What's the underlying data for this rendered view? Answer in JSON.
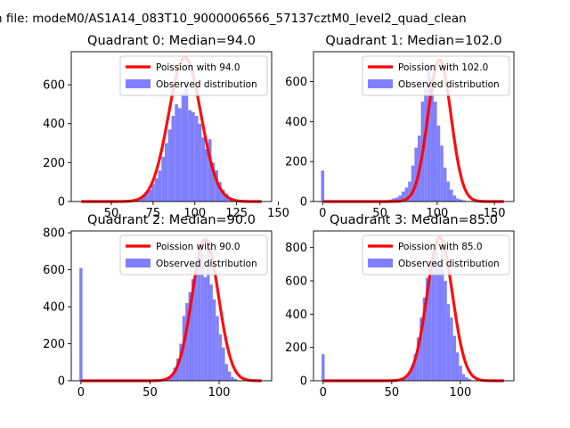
{
  "figure_title": "n file: modeM0/AS1A14_083T10_9000006566_57137cztM0_level2_quad_clean",
  "colors": {
    "poisson_line": "#ff0000",
    "histogram": "#8080ff",
    "axes": "#000000",
    "legend_border": "#cccccc",
    "background": "#ffffff"
  },
  "chart_data": [
    {
      "type": "bar",
      "title": "Quadrant 0: Median=94.0",
      "xlim": [
        26,
        146
      ],
      "ylim": [
        0,
        770
      ],
      "xticks": [
        50,
        75,
        100,
        125,
        150
      ],
      "yticks": [
        0,
        200,
        400,
        600
      ],
      "legend_position": "top-right",
      "line": {
        "name": "Poission with 94.0",
        "mu": 94.0,
        "peak": 740
      },
      "hist": {
        "name": "Observed distribution",
        "start": 62,
        "width": 2,
        "values": [
          5,
          10,
          20,
          30,
          50,
          60,
          90,
          120,
          160,
          230,
          300,
          370,
          440,
          500,
          480,
          560,
          620,
          470,
          460,
          440,
          400,
          330,
          270,
          320,
          200,
          160,
          100,
          60,
          40,
          20
        ]
      }
    },
    {
      "type": "bar",
      "title": "Quadrant 1: Median=102.0",
      "xlim": [
        -8,
        167
      ],
      "ylim": [
        0,
        750
      ],
      "xticks": [
        0,
        50,
        100,
        150
      ],
      "yticks": [
        0,
        200,
        400,
        600
      ],
      "legend_position": "top-right",
      "line": {
        "name": "Poission with 102.0",
        "mu": 102.0,
        "peak": 710
      },
      "hist": {
        "name": "Observed distribution",
        "start": 0,
        "width": 2.8,
        "spikes": [
          {
            "x": 0,
            "value": 155
          }
        ],
        "bins_start": 55,
        "values": [
          5,
          10,
          15,
          20,
          30,
          50,
          70,
          100,
          180,
          270,
          330,
          500,
          570,
          690,
          620,
          500,
          380,
          280,
          170,
          100,
          60,
          30,
          15,
          10,
          5
        ]
      }
    },
    {
      "type": "bar",
      "title": "Quadrant 2: Median=90.0",
      "xlim": [
        -7,
        138
      ],
      "ylim": [
        0,
        810
      ],
      "xticks": [
        0,
        50,
        100
      ],
      "yticks": [
        0,
        200,
        400,
        600,
        800
      ],
      "legend_position": "top-right",
      "line": {
        "name": "Poission with 90.0",
        "mu": 90.0,
        "peak": 765
      },
      "hist": {
        "name": "Observed distribution",
        "start": 0,
        "width": 2.2,
        "spikes": [
          {
            "x": 0,
            "value": 610
          }
        ],
        "bins_start": 58,
        "values": [
          5,
          10,
          20,
          30,
          70,
          120,
          200,
          350,
          420,
          480,
          550,
          650,
          740,
          690,
          560,
          720,
          520,
          440,
          350,
          250,
          180,
          90,
          50,
          20,
          10
        ]
      }
    },
    {
      "type": "bar",
      "title": "Quadrant 3: Median=85.0",
      "xlim": [
        -7,
        139
      ],
      "ylim": [
        0,
        900
      ],
      "xticks": [
        0,
        50,
        100
      ],
      "yticks": [
        0,
        200,
        400,
        600,
        800
      ],
      "legend_position": "top-right",
      "line": {
        "name": "Poission with 85.0",
        "mu": 85.0,
        "peak": 860
      },
      "hist": {
        "name": "Observed distribution",
        "start": 0,
        "width": 2.2,
        "spikes": [
          {
            "x": 0,
            "value": 160
          }
        ],
        "bins_start": 55,
        "values": [
          5,
          10,
          20,
          40,
          90,
          160,
          260,
          380,
          500,
          620,
          680,
          780,
          850,
          700,
          820,
          600,
          460,
          380,
          270,
          170,
          90,
          40,
          20,
          10
        ]
      }
    }
  ]
}
